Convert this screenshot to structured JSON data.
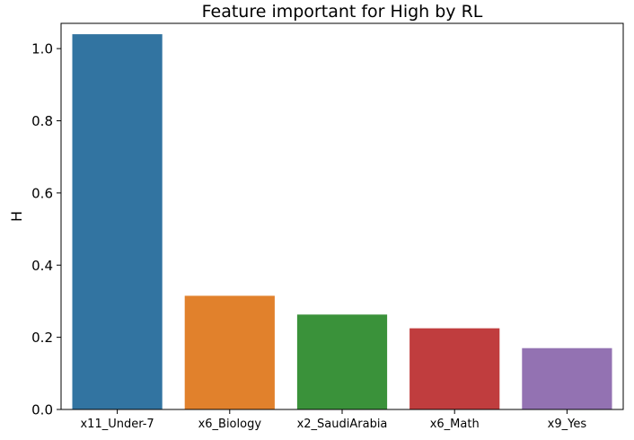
{
  "chart_data": {
    "type": "bar",
    "title": "Feature important for High by RL",
    "xlabel": "",
    "ylabel": "H",
    "categories": [
      "x11_Under-7",
      "x6_Biology",
      "x2_SaudiArabia",
      "x6_Math",
      "x9_Yes"
    ],
    "values": [
      1.04,
      0.315,
      0.263,
      0.225,
      0.17
    ],
    "colors": [
      "#3274a1",
      "#e1812c",
      "#3a923a",
      "#c03d3e",
      "#9372b2"
    ],
    "ylim": [
      0,
      1.07
    ],
    "yticks": [
      0.0,
      0.2,
      0.4,
      0.6,
      0.8,
      1.0
    ],
    "ytick_labels": [
      "0.0",
      "0.2",
      "0.4",
      "0.6",
      "0.8",
      "1.0"
    ],
    "grid": false,
    "legend": "none"
  }
}
